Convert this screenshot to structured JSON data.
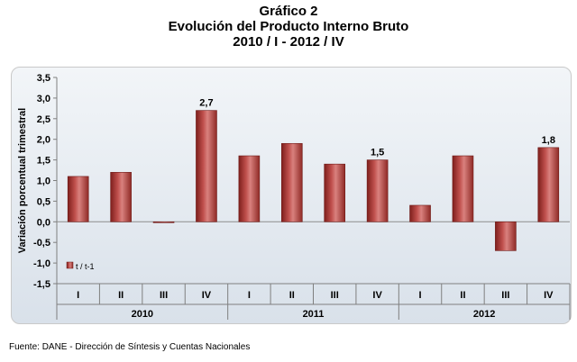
{
  "title_lines": [
    "Gráfico 2",
    "Evolución del Producto Interno Bruto",
    "2010 / I - 2012 / IV"
  ],
  "source": "Fuente: DANE - Dirección de Síntesis y Cuentas Nacionales",
  "chart_data": {
    "type": "bar",
    "title": "Evolución del Producto Interno Bruto",
    "ylabel": "Variación porcentual trimestral",
    "xlabel": "",
    "ylim": [
      -1.5,
      3.5
    ],
    "yticks": [
      "-1,5",
      "-1,0",
      "-0,5",
      "0,0",
      "0,5",
      "1,0",
      "1,5",
      "2,0",
      "2,5",
      "3,0",
      "3,5"
    ],
    "categories": [
      "I",
      "II",
      "III",
      "IV",
      "I",
      "II",
      "III",
      "IV",
      "I",
      "II",
      "III",
      "IV"
    ],
    "groups": [
      {
        "label": "2010",
        "count": 4
      },
      {
        "label": "2011",
        "count": 4
      },
      {
        "label": "2012",
        "count": 4
      }
    ],
    "series": [
      {
        "name": "t / t-1",
        "values": [
          1.1,
          1.2,
          0.0,
          2.7,
          1.6,
          1.9,
          1.4,
          1.5,
          0.4,
          1.6,
          -0.7,
          1.8
        ],
        "color": "#b83a36"
      }
    ],
    "data_labels": [
      {
        "index": 3,
        "text": "2,7"
      },
      {
        "index": 7,
        "text": "1,5"
      },
      {
        "index": 11,
        "text": "1,8"
      }
    ],
    "legend": {
      "position": "bottom-left",
      "entries": [
        "t / t-1"
      ]
    },
    "grid": false
  }
}
